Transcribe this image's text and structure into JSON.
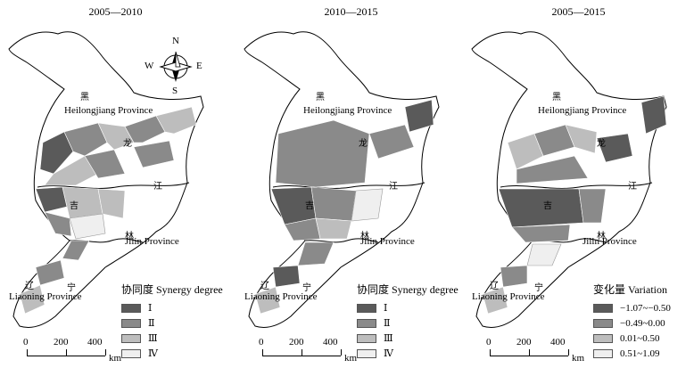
{
  "panels": [
    {
      "title": "2005—2010",
      "legend_title": "协同度 Synergy degree",
      "legend": [
        {
          "label": "Ⅰ",
          "color": "#5a5a5a"
        },
        {
          "label": "Ⅱ",
          "color": "#8a8a8a"
        },
        {
          "label": "Ⅲ",
          "color": "#bdbdbd"
        },
        {
          "label": "Ⅳ",
          "color": "#efefef"
        }
      ]
    },
    {
      "title": "2010—2015",
      "legend_title": "协同度 Synergy degree",
      "legend": [
        {
          "label": "Ⅰ",
          "color": "#5a5a5a"
        },
        {
          "label": "Ⅱ",
          "color": "#8a8a8a"
        },
        {
          "label": "Ⅲ",
          "color": "#bdbdbd"
        },
        {
          "label": "Ⅳ",
          "color": "#efefef"
        }
      ]
    },
    {
      "title": "2005—2015",
      "legend_title": "变化量 Variation",
      "legend": [
        {
          "label": "−1.07~−0.50",
          "color": "#5a5a5a"
        },
        {
          "label": "−0.49~0.00",
          "color": "#8a8a8a"
        },
        {
          "label": "0.01~0.50",
          "color": "#bdbdbd"
        },
        {
          "label": "0.51~1.09",
          "color": "#efefef"
        }
      ]
    }
  ],
  "provinces": {
    "heilongjiang": "Heilongjiang Province",
    "jilin": "Jilin Province",
    "liaoning": "Liaoning Province"
  },
  "province_chars": {
    "hei": "黑",
    "long": "龙",
    "jiang": "江",
    "ji": "吉",
    "lin": "林",
    "liao": "辽",
    "ning": "宁"
  },
  "compass": {
    "n": "N",
    "s": "S",
    "e": "E",
    "w": "W"
  },
  "scale": {
    "ticks": [
      "0",
      "200",
      "400"
    ],
    "unit": "km"
  }
}
